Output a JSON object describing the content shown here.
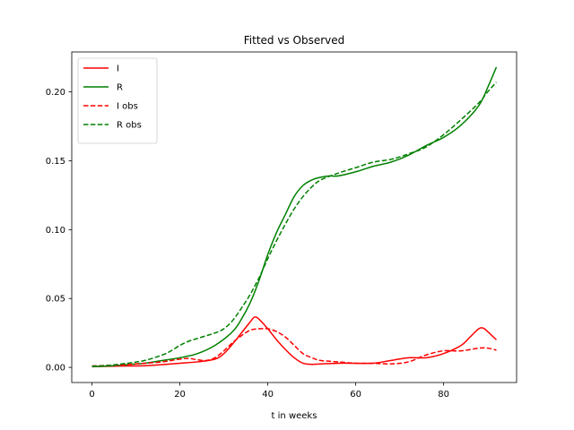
{
  "chart_data": {
    "type": "line",
    "title": "Fitted vs Observed",
    "xlabel": "t in weeks",
    "ylabel": "",
    "xlim": [
      -4.6,
      96.6
    ],
    "ylim": [
      -0.011,
      0.229
    ],
    "xticks": [
      0,
      20,
      40,
      60,
      80
    ],
    "xtick_labels": [
      "0",
      "20",
      "40",
      "60",
      "80"
    ],
    "yticks": [
      0.0,
      0.05,
      0.1,
      0.15,
      0.2
    ],
    "ytick_labels": [
      "0.00",
      "0.05",
      "0.10",
      "0.15",
      "0.20"
    ],
    "grid": false,
    "legend_position": "upper-left",
    "series": [
      {
        "name": "I",
        "color": "#ff0000",
        "style": "solid",
        "x": [
          0,
          4,
          8,
          12,
          16,
          20,
          24,
          28,
          30,
          32,
          34,
          36,
          37,
          38,
          40,
          42,
          44,
          46,
          48,
          50,
          52,
          56,
          60,
          64,
          68,
          72,
          76,
          80,
          84,
          86,
          88,
          89,
          90,
          92
        ],
        "y": [
          0.0005,
          0.0008,
          0.001,
          0.0012,
          0.002,
          0.003,
          0.004,
          0.006,
          0.01,
          0.017,
          0.025,
          0.033,
          0.0365,
          0.035,
          0.028,
          0.02,
          0.013,
          0.007,
          0.003,
          0.0022,
          0.0025,
          0.003,
          0.003,
          0.003,
          0.005,
          0.007,
          0.007,
          0.01,
          0.016,
          0.022,
          0.028,
          0.0285,
          0.026,
          0.02
        ]
      },
      {
        "name": "R",
        "color": "#008000",
        "style": "solid",
        "x": [
          0,
          4,
          8,
          12,
          16,
          20,
          24,
          28,
          32,
          34,
          36,
          38,
          40,
          42,
          44,
          46,
          48,
          50,
          52,
          54,
          56,
          60,
          64,
          68,
          72,
          76,
          80,
          84,
          88,
          90,
          92
        ],
        "y": [
          0.0005,
          0.001,
          0.002,
          0.003,
          0.005,
          0.007,
          0.01,
          0.016,
          0.026,
          0.035,
          0.047,
          0.063,
          0.082,
          0.098,
          0.111,
          0.124,
          0.132,
          0.136,
          0.138,
          0.139,
          0.139,
          0.142,
          0.146,
          0.149,
          0.154,
          0.161,
          0.167,
          0.176,
          0.19,
          0.203,
          0.218
        ]
      },
      {
        "name": "I obs",
        "color": "#ff0000",
        "style": "dashed",
        "x": [
          0,
          4,
          8,
          12,
          16,
          20,
          22,
          24,
          26,
          28,
          30,
          32,
          34,
          36,
          38,
          40,
          42,
          44,
          46,
          48,
          50,
          52,
          56,
          60,
          64,
          68,
          72,
          76,
          80,
          84,
          88,
          90,
          92
        ],
        "y": [
          0.001,
          0.0015,
          0.002,
          0.003,
          0.004,
          0.006,
          0.0065,
          0.0055,
          0.005,
          0.007,
          0.012,
          0.018,
          0.023,
          0.027,
          0.028,
          0.028,
          0.026,
          0.022,
          0.016,
          0.01,
          0.007,
          0.005,
          0.004,
          0.003,
          0.003,
          0.0025,
          0.004,
          0.009,
          0.012,
          0.012,
          0.014,
          0.014,
          0.0125
        ]
      },
      {
        "name": "R obs",
        "color": "#008000",
        "style": "dashed",
        "x": [
          0,
          4,
          8,
          12,
          16,
          18,
          20,
          22,
          24,
          26,
          28,
          30,
          32,
          34,
          36,
          38,
          40,
          42,
          44,
          46,
          48,
          50,
          52,
          56,
          60,
          64,
          68,
          72,
          76,
          80,
          84,
          88,
          90,
          92
        ],
        "y": [
          0.0008,
          0.0015,
          0.003,
          0.005,
          0.009,
          0.012,
          0.016,
          0.019,
          0.021,
          0.023,
          0.025,
          0.028,
          0.034,
          0.043,
          0.053,
          0.065,
          0.079,
          0.092,
          0.104,
          0.115,
          0.124,
          0.131,
          0.136,
          0.141,
          0.145,
          0.149,
          0.151,
          0.155,
          0.16,
          0.169,
          0.18,
          0.192,
          0.2,
          0.207
        ]
      }
    ]
  }
}
